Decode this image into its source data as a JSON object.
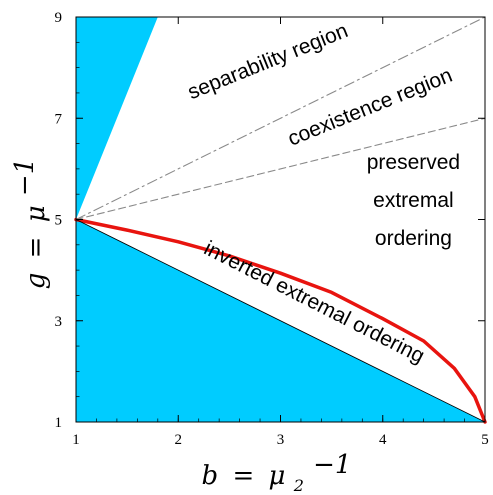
{
  "chart_data": {
    "type": "area",
    "title": "",
    "xlabel": {
      "var": "b",
      "eq": "=",
      "sym": "μ",
      "sub": "2",
      "sup": "−1"
    },
    "ylabel": {
      "var": "g",
      "eq": "=",
      "sym": "μ",
      "sup": "−1"
    },
    "xlim": [
      1,
      5
    ],
    "ylim": [
      1,
      9
    ],
    "xticks": [
      1,
      2,
      3,
      4,
      5
    ],
    "yticks": [
      1,
      3,
      5,
      7,
      9
    ],
    "grid": false,
    "fill_color": "#00CCFF",
    "regions": [
      {
        "name": "upper-wedge",
        "points": [
          [
            1,
            5
          ],
          [
            1,
            9
          ],
          [
            1.8,
            9
          ]
        ]
      },
      {
        "name": "lower-triangle",
        "points": [
          [
            1,
            5
          ],
          [
            1,
            1
          ],
          [
            5,
            1
          ]
        ]
      }
    ],
    "series": [
      {
        "style": "solid-thick",
        "color": "#E8140F",
        "x": [
          1,
          1.5,
          2,
          2.5,
          3,
          3.5,
          4,
          4.4,
          4.7,
          4.9,
          5
        ],
        "y": [
          5,
          4.79,
          4.56,
          4.28,
          3.94,
          3.56,
          3.04,
          2.6,
          2.06,
          1.5,
          1
        ]
      },
      {
        "style": "dashdot",
        "color": "#8a8a8a",
        "x": [
          1,
          5
        ],
        "y": [
          5,
          9
        ]
      },
      {
        "style": "dashed",
        "color": "#8a8a8a",
        "x": [
          1,
          5
        ],
        "y": [
          5,
          7
        ]
      },
      {
        "style": "thin",
        "color": "#000000",
        "x": [
          1,
          5
        ],
        "y": [
          5,
          1
        ]
      }
    ],
    "annotations": [
      {
        "id": "separability",
        "text": "separability region",
        "x": 2.9,
        "y": 8.0,
        "angle": -22
      },
      {
        "id": "coexistence",
        "text": "coexistence region",
        "x": 3.9,
        "y": 7.1,
        "angle": -22
      },
      {
        "id": "preserved1",
        "text": "preserved",
        "x": 4.3,
        "y": 6.0,
        "angle": 0
      },
      {
        "id": "preserved2",
        "text": "extremal",
        "x": 4.3,
        "y": 5.25,
        "angle": 0
      },
      {
        "id": "preserved3",
        "text": "ordering",
        "x": 4.3,
        "y": 4.5,
        "angle": 0
      },
      {
        "id": "inverted",
        "text": "inverted extremal ordering",
        "x": 3.3,
        "y": 3.25,
        "angle": 27
      }
    ]
  }
}
